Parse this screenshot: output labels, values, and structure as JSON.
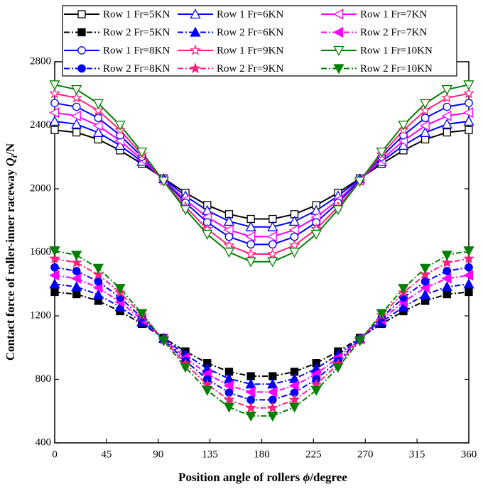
{
  "chart_data": {
    "type": "line",
    "xlabel": {
      "text": "Position angle of rollers ",
      "symbol": "ϕ",
      "unit": "/degree"
    },
    "ylabel": {
      "text": "Contact force of roller-inner raceway ",
      "symbol": "Q",
      "subscript": "i",
      "unit": "/N"
    },
    "x": [
      0,
      18.95,
      37.89,
      56.84,
      75.79,
      94.74,
      113.68,
      132.63,
      151.58,
      170.53,
      189.47,
      208.42,
      227.37,
      246.32,
      265.26,
      284.21,
      303.16,
      322.11,
      341.05,
      360
    ],
    "xlim": [
      0,
      360
    ],
    "xticks": [
      0,
      45,
      90,
      135,
      180,
      225,
      270,
      315,
      360
    ],
    "ylim": [
      400,
      2800
    ],
    "yticks": [
      400,
      800,
      1200,
      1600,
      2000,
      2400,
      2800
    ],
    "legend": "top",
    "series": [
      {
        "name": "Row 1 Fr=5KN",
        "color": "#000000",
        "marker": "square",
        "filled": false,
        "dash": "solid",
        "values": [
          2370,
          2355,
          2311,
          2242,
          2157,
          2065,
          1975,
          1897,
          1840,
          1810,
          1810,
          1840,
          1897,
          1975,
          2065,
          2157,
          2242,
          2311,
          2355,
          2370
        ]
      },
      {
        "name": "Row 1 Fr=6KN",
        "color": "#0000ff",
        "marker": "triangle-up",
        "filled": false,
        "dash": "solid",
        "values": [
          2425,
          2407,
          2354,
          2273,
          2172,
          2062,
          1955,
          1863,
          1795,
          1760,
          1760,
          1795,
          1863,
          1955,
          2062,
          2172,
          2273,
          2354,
          2407,
          2425
        ]
      },
      {
        "name": "Row 1 Fr=7KN",
        "color": "#ff00ff",
        "marker": "triangle-left",
        "filled": false,
        "dash": "solid",
        "values": [
          2480,
          2459,
          2397,
          2302,
          2184,
          2055,
          1929,
          1821,
          1741,
          1699,
          1699,
          1741,
          1821,
          1929,
          2055,
          2184,
          2302,
          2397,
          2459,
          2480
        ]
      },
      {
        "name": "Row 2 Fr=5KN",
        "color": "#000000",
        "marker": "square",
        "filled": true,
        "dash": "dashdot",
        "values": [
          1350,
          1336,
          1294,
          1229,
          1149,
          1061,
          976,
          902,
          848,
          820,
          820,
          848,
          902,
          976,
          1061,
          1149,
          1229,
          1294,
          1336,
          1350
        ]
      },
      {
        "name": "Row 2 Fr=6KN",
        "color": "#0000ff",
        "marker": "triangle-up",
        "filled": true,
        "dash": "dashdot",
        "values": [
          1400,
          1383,
          1333,
          1256,
          1161,
          1057,
          956,
          868,
          804,
          770,
          770,
          804,
          868,
          956,
          1057,
          1161,
          1256,
          1333,
          1383,
          1400
        ]
      },
      {
        "name": "Row 2 Fr=7KN",
        "color": "#ff00ff",
        "marker": "triangle-left",
        "filled": true,
        "dash": "dashdot",
        "values": [
          1455,
          1435,
          1377,
          1287,
          1176,
          1054,
          936,
          834,
          760,
          720,
          720,
          760,
          834,
          936,
          1054,
          1176,
          1287,
          1377,
          1435,
          1455
        ]
      },
      {
        "name": "Row 1 Fr=8KN",
        "color": "#0000ff",
        "marker": "circle",
        "filled": false,
        "dash": "solid",
        "values": [
          2540,
          2516,
          2446,
          2337,
          2202,
          2055,
          1912,
          1789,
          1698,
          1650,
          1650,
          1698,
          1789,
          1912,
          2055,
          2202,
          2337,
          2446,
          2516,
          2540
        ]
      },
      {
        "name": "Row 1 Fr=9KN",
        "color": "#ff2080",
        "marker": "star",
        "filled": false,
        "dash": "solid",
        "values": [
          2600,
          2572,
          2493,
          2369,
          2216,
          2049,
          1887,
          1746,
          1643,
          1589,
          1589,
          1643,
          1746,
          1887,
          2049,
          2216,
          2369,
          2493,
          2572,
          2600
        ]
      },
      {
        "name": "Row 1 Fr=10KN",
        "color": "#008000",
        "marker": "triangle-down",
        "filled": false,
        "dash": "solid",
        "values": [
          2655,
          2625,
          2537,
          2401,
          2232,
          2048,
          1869,
          1714,
          1601,
          1541,
          1541,
          1601,
          1714,
          1869,
          2048,
          2232,
          2401,
          2537,
          2625,
          2655
        ]
      },
      {
        "name": "Row 2 Fr=8KN",
        "color": "#0000ff",
        "marker": "circle",
        "filled": true,
        "dash": "dashdot",
        "values": [
          1505,
          1482,
          1416,
          1315,
          1188,
          1050,
          916,
          801,
          716,
          671,
          671,
          716,
          801,
          916,
          1050,
          1188,
          1315,
          1416,
          1482,
          1505
        ]
      },
      {
        "name": "Row 2 Fr=9KN",
        "color": "#ff2080",
        "marker": "star",
        "filled": true,
        "dash": "dashdot",
        "values": [
          1560,
          1534,
          1460,
          1346,
          1203,
          1048,
          897,
          767,
          671,
          620,
          620,
          671,
          767,
          897,
          1048,
          1203,
          1346,
          1460,
          1534,
          1560
        ]
      },
      {
        "name": "Row 2 Fr=10KN",
        "color": "#008000",
        "marker": "triangle-down",
        "filled": true,
        "dash": "dashdot",
        "values": [
          1610,
          1582,
          1500,
          1373,
          1215,
          1043,
          876,
          731,
          625,
          569,
          569,
          625,
          731,
          876,
          1043,
          1215,
          1373,
          1500,
          1582,
          1610
        ]
      }
    ]
  }
}
